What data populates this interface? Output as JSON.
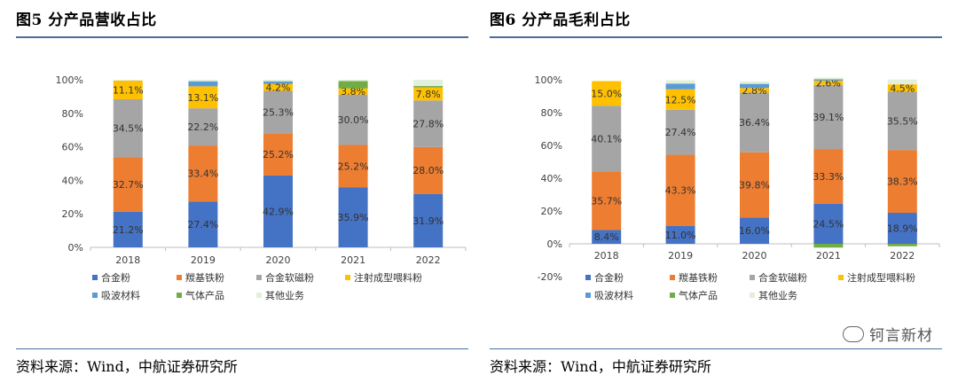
{
  "figures": [
    {
      "title": "图5  分产品营收占比",
      "source": "资料来源：Wind，中航证券研究所"
    },
    {
      "title": "图6  分产品毛利占比",
      "source": "资料来源：Wind，中航证券研究所"
    }
  ],
  "watermark": "钶言新材",
  "chart_data": [
    {
      "type": "bar",
      "stacked": true,
      "title": "图5  分产品营收占比",
      "categories": [
        "2018",
        "2019",
        "2020",
        "2021",
        "2022"
      ],
      "ylim": [
        0,
        100
      ],
      "yticks": [
        0,
        20,
        40,
        60,
        80,
        100
      ],
      "ytick_labels": [
        "0%",
        "20%",
        "40%",
        "60%",
        "80%",
        "100%"
      ],
      "series": [
        {
          "name": "合金粉",
          "color": "#4472C4",
          "values": [
            21.2,
            27.4,
            42.9,
            35.9,
            31.9
          ],
          "labels": [
            "21.2%",
            "27.4%",
            "42.9%",
            "35.9%",
            "31.9%"
          ]
        },
        {
          "name": "羰基铁粉",
          "color": "#ED7D31",
          "values": [
            32.7,
            33.4,
            25.2,
            25.2,
            28.0
          ],
          "labels": [
            "32.7%",
            "33.4%",
            "25.2%",
            "25.2%",
            "28.0%"
          ]
        },
        {
          "name": "合金软磁粉",
          "color": "#A5A5A5",
          "values": [
            34.5,
            22.2,
            25.3,
            30.0,
            27.8
          ],
          "labels": [
            "34.5%",
            "22.2%",
            "25.3%",
            "30.0%",
            "27.8%"
          ]
        },
        {
          "name": "注射成型喂料粉",
          "color": "#FFC000",
          "values": [
            11.1,
            13.1,
            4.2,
            3.8,
            7.8
          ],
          "labels": [
            "11.1%",
            "13.1%",
            "4.2%",
            "3.8%",
            "7.8%"
          ]
        },
        {
          "name": "吸波材料",
          "color": "#5B9BD5",
          "values": [
            0,
            3.0,
            1.5,
            0,
            0.3
          ],
          "labels": [
            "",
            "",
            "",
            "",
            ""
          ]
        },
        {
          "name": "气体产品",
          "color": "#70AD47",
          "values": [
            0,
            0,
            0,
            4.3,
            0.5
          ],
          "labels": [
            "",
            "",
            "",
            "",
            ""
          ]
        },
        {
          "name": "其他业务",
          "color": "#E2EFDA",
          "values": [
            0.5,
            0.9,
            0.9,
            0.8,
            3.7
          ],
          "labels": [
            "",
            "",
            "",
            "",
            ""
          ]
        }
      ],
      "legend": [
        "合金粉",
        "羰基铁粉",
        "合金软磁粉",
        "注射成型喂料粉",
        "吸波材料",
        "气体产品",
        "其他业务"
      ]
    },
    {
      "type": "bar",
      "stacked": true,
      "title": "图6  分产品毛利占比",
      "categories": [
        "2018",
        "2019",
        "2020",
        "2021",
        "2022"
      ],
      "ylim": [
        -20,
        100
      ],
      "yticks": [
        -20,
        0,
        20,
        40,
        60,
        80,
        100
      ],
      "ytick_labels": [
        "-20%",
        "0%",
        "20%",
        "40%",
        "60%",
        "80%",
        "100%"
      ],
      "series": [
        {
          "name": "合金粉",
          "color": "#4472C4",
          "values": [
            8.4,
            11.0,
            16.0,
            24.5,
            18.9
          ],
          "labels": [
            "8.4%",
            "11.0%",
            "16.0%",
            "24.5%",
            "18.9%"
          ]
        },
        {
          "name": "羰基铁粉",
          "color": "#ED7D31",
          "values": [
            35.7,
            43.3,
            39.8,
            33.3,
            38.3
          ],
          "labels": [
            "35.7%",
            "43.3%",
            "39.8%",
            "33.3%",
            "38.3%"
          ]
        },
        {
          "name": "合金软磁粉",
          "color": "#A5A5A5",
          "values": [
            40.1,
            27.4,
            36.4,
            39.1,
            35.5
          ],
          "labels": [
            "40.1%",
            "27.4%",
            "36.4%",
            "39.1%",
            "35.5%"
          ]
        },
        {
          "name": "注射成型喂料粉",
          "color": "#FFC000",
          "values": [
            15.0,
            12.5,
            2.8,
            2.6,
            4.5
          ],
          "labels": [
            "15.0%",
            "12.5%",
            "2.8%",
            "2.6%",
            "4.5%"
          ]
        },
        {
          "name": "吸波材料",
          "color": "#5B9BD5",
          "values": [
            0,
            3.5,
            2.5,
            0.8,
            0
          ],
          "labels": [
            "",
            "",
            "",
            "",
            ""
          ]
        },
        {
          "name": "气体产品",
          "color": "#70AD47",
          "values": [
            0,
            0,
            0,
            -2.3,
            -1.5
          ],
          "labels": [
            "",
            "",
            "",
            "",
            ""
          ]
        },
        {
          "name": "其他业务",
          "color": "#E2EFDA",
          "values": [
            0,
            2.0,
            1.5,
            1.0,
            3.0
          ],
          "labels": [
            "",
            "",
            "",
            "",
            ""
          ]
        }
      ],
      "legend": [
        "合金粉",
        "羰基铁粉",
        "合金软磁粉",
        "注射成型喂料粉",
        "吸波材料",
        "气体产品",
        "其他业务"
      ]
    }
  ]
}
